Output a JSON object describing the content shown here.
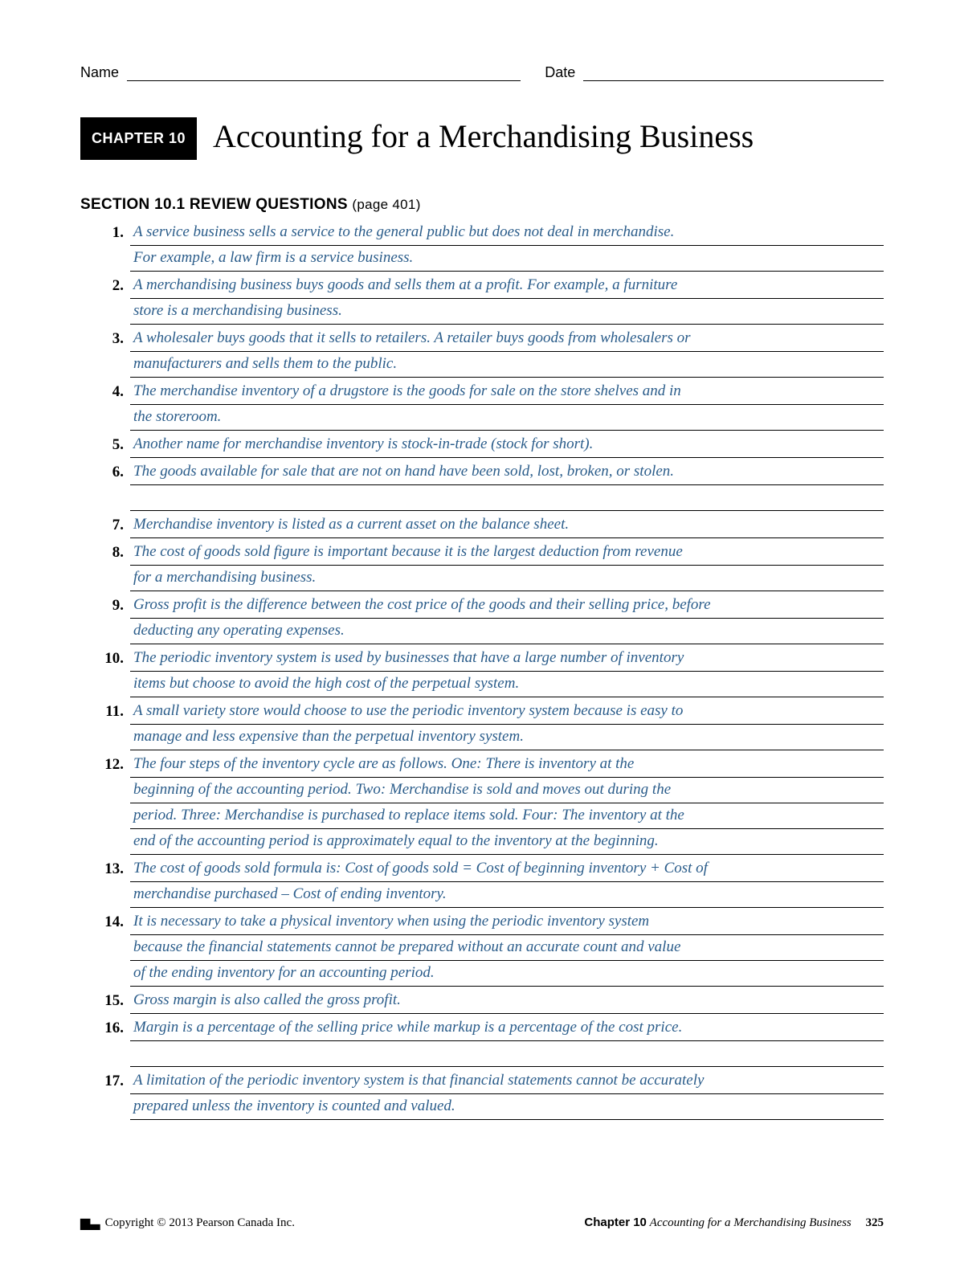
{
  "header": {
    "name_label": "Name",
    "date_label": "Date"
  },
  "chapter": {
    "badge": "CHAPTER 10",
    "title": "Accounting for a Merchandising Business"
  },
  "section": {
    "heading": "SECTION 10.1 REVIEW QUESTIONS",
    "page_ref": "(page 401)"
  },
  "answer_color": "#2a5c8a",
  "questions": [
    {
      "num": "1.",
      "lines": [
        "A service business sells a service to the general public but does not deal in merchandise.",
        "For example, a law firm is a service business."
      ]
    },
    {
      "num": "2.",
      "lines": [
        "A merchandising business buys goods and sells them at a profit. For example, a furniture",
        "store is a merchandising business."
      ]
    },
    {
      "num": "3.",
      "lines": [
        "A wholesaler buys goods that it sells to retailers. A retailer buys goods from wholesalers or",
        "manufacturers and sells them to the public."
      ]
    },
    {
      "num": "4.",
      "lines": [
        "The merchandise inventory of a drugstore is the goods for sale on the store shelves and in",
        "the storeroom."
      ]
    },
    {
      "num": "5.",
      "lines": [
        "Another name for merchandise inventory is stock-in-trade (stock for short)."
      ]
    },
    {
      "num": "6.",
      "lines": [
        "The goods available for sale that are not on hand have been sold, lost, broken, or stolen.",
        ""
      ]
    },
    {
      "num": "7.",
      "lines": [
        "Merchandise inventory is listed as a current asset on the balance sheet."
      ]
    },
    {
      "num": "8.",
      "lines": [
        "The cost of goods sold figure is important because it is the largest deduction from revenue",
        "for a merchandising business."
      ]
    },
    {
      "num": "9.",
      "lines": [
        "Gross profit is the difference between the cost price of the goods and their selling price, before",
        "deducting any operating expenses."
      ]
    },
    {
      "num": "10.",
      "lines": [
        "The periodic inventory system is used by businesses that have a large number of inventory",
        "items but choose to avoid the high cost of the perpetual system."
      ]
    },
    {
      "num": "11.",
      "lines": [
        "A small variety store would choose to use the periodic inventory system because is easy to",
        "manage and less expensive than the perpetual inventory system."
      ]
    },
    {
      "num": "12.",
      "lines": [
        "The four steps of the inventory cycle are as follows. One: There is inventory at the",
        "beginning of the accounting period. Two: Merchandise is sold and moves out during the",
        "period. Three: Merchandise is purchased to replace items sold. Four: The inventory at the",
        "end of the accounting period is approximately equal to the inventory at the beginning."
      ]
    },
    {
      "num": "13.",
      "lines": [
        "The cost of goods sold formula is: Cost of goods sold = Cost of beginning inventory + Cost of",
        "merchandise purchased – Cost of ending inventory."
      ]
    },
    {
      "num": "14.",
      "lines": [
        "It is necessary to take a physical inventory when using the periodic inventory system",
        "because the financial statements cannot be prepared without an accurate count and value",
        "of the ending inventory for an accounting period."
      ]
    },
    {
      "num": "15.",
      "lines": [
        "Gross margin is also called the gross profit."
      ]
    },
    {
      "num": "16.",
      "lines": [
        "Margin is a percentage of the selling price while markup is a percentage of the cost price.",
        ""
      ]
    },
    {
      "num": "17.",
      "lines": [
        "A limitation of the periodic inventory system is that financial statements cannot be accurately",
        "prepared unless the inventory is counted and valued."
      ]
    }
  ],
  "footer": {
    "copyright": "Copyright © 2013 Pearson Canada Inc.",
    "chapter_label": "Chapter 10",
    "chapter_title_ital": "Accounting for a Merchandising Business",
    "page_num": "325"
  }
}
